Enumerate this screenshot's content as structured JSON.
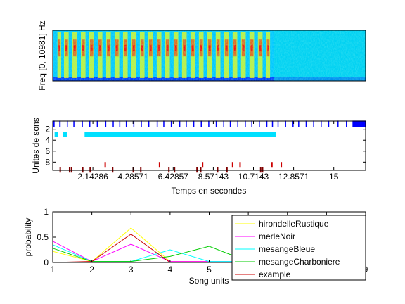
{
  "figure": {
    "background": "#ffffff"
  },
  "chart_data": [
    {
      "type": "heatmap",
      "ylabel": "Freq [0, 10981] Hz",
      "xlabel": "",
      "xlim": [
        0,
        16.7
      ],
      "energy_band_center_fraction": 0.35,
      "active_segments": [
        [
          0.25,
          0.45
        ],
        [
          0.6,
          0.85
        ],
        [
          1.05,
          1.3
        ],
        [
          1.5,
          1.75
        ],
        [
          1.95,
          2.2
        ],
        [
          2.4,
          2.65
        ],
        [
          2.85,
          3.1
        ],
        [
          3.3,
          3.55
        ],
        [
          3.75,
          4.0
        ],
        [
          4.2,
          4.45
        ],
        [
          4.65,
          4.9
        ],
        [
          5.1,
          5.35
        ],
        [
          5.55,
          5.8
        ],
        [
          6.0,
          6.25
        ],
        [
          6.45,
          6.7
        ],
        [
          6.9,
          7.15
        ],
        [
          7.35,
          7.6
        ],
        [
          7.8,
          8.05
        ],
        [
          8.25,
          8.5
        ],
        [
          8.7,
          8.95
        ],
        [
          9.15,
          9.4
        ],
        [
          9.6,
          9.85
        ],
        [
          10.05,
          10.3
        ],
        [
          10.5,
          10.75
        ],
        [
          10.95,
          11.2
        ],
        [
          11.4,
          11.6
        ]
      ],
      "sound_end_s": 11.8,
      "colormap": [
        "#00007f",
        "#0000ff",
        "#00ffff",
        "#ffff00",
        "#ff0000",
        "#7f0000"
      ]
    },
    {
      "type": "scatter",
      "xlabel": "Temps en secondes",
      "ylabel": "Unites de sons",
      "xlim": [
        0,
        16.7
      ],
      "ylim": [
        0.5,
        9.5
      ],
      "y_reversed": true,
      "xticks": [
        2.14286,
        4.28571,
        6.42857,
        8.57143,
        10.7143,
        12.8571,
        15
      ],
      "xticklabels": [
        "2.14286",
        "4.28571",
        "6.42857",
        "8.57143",
        "10.7143",
        "12.8571",
        "15"
      ],
      "yticks": [
        2,
        4,
        6,
        8
      ],
      "yticklabels": [
        "2",
        "4",
        "6",
        "8"
      ],
      "series": [
        {
          "unit": 1,
          "color": "#0000ff",
          "segments": [
            [
              0.0,
              0.1
            ],
            [
              0.35,
              0.42
            ],
            [
              0.75,
              0.8
            ],
            [
              1.1,
              1.15
            ],
            [
              1.55,
              1.6
            ],
            [
              1.95,
              2.0
            ],
            [
              2.35,
              2.4
            ],
            [
              2.8,
              2.85
            ],
            [
              3.2,
              3.25
            ],
            [
              3.55,
              3.6
            ],
            [
              3.9,
              3.95
            ],
            [
              4.3,
              4.35
            ],
            [
              4.7,
              4.75
            ],
            [
              5.1,
              5.15
            ],
            [
              5.55,
              5.6
            ],
            [
              5.9,
              5.95
            ],
            [
              6.3,
              6.35
            ],
            [
              6.75,
              6.8
            ],
            [
              7.1,
              7.15
            ],
            [
              7.5,
              7.55
            ],
            [
              7.9,
              7.95
            ],
            [
              8.3,
              8.35
            ],
            [
              8.7,
              8.75
            ],
            [
              9.1,
              9.15
            ],
            [
              9.45,
              9.5
            ],
            [
              9.85,
              9.9
            ],
            [
              10.25,
              10.3
            ],
            [
              10.6,
              10.65
            ],
            [
              11.0,
              11.05
            ],
            [
              11.4,
              11.45
            ],
            [
              11.7,
              11.75
            ],
            [
              12.0,
              12.05
            ],
            [
              12.4,
              12.45
            ],
            [
              12.8,
              12.85
            ],
            [
              13.1,
              13.15
            ],
            [
              13.5,
              13.55
            ],
            [
              13.9,
              13.95
            ],
            [
              14.3,
              14.35
            ],
            [
              14.7,
              14.75
            ],
            [
              15.2,
              15.25
            ],
            [
              15.65,
              15.7
            ],
            [
              16.0,
              16.7
            ]
          ]
        },
        {
          "unit": 3,
          "color": "#00e0ff",
          "segments": [
            [
              0.1,
              0.3
            ],
            [
              0.55,
              0.75
            ],
            [
              1.7,
              11.9
            ]
          ]
        },
        {
          "unit": 8.5,
          "color": "#cc0000",
          "points": [
            2.8,
            5.7,
            8.0,
            9.6,
            10.0,
            11.7,
            12.2
          ]
        },
        {
          "unit": 9.4,
          "color": "#7f0000",
          "points": [
            0.4,
            0.9,
            1.0,
            1.6,
            2.0,
            3.2,
            4.3,
            4.7,
            6.2,
            6.5,
            7.7,
            7.9,
            8.8,
            9.3,
            11.1,
            11.2
          ]
        }
      ]
    },
    {
      "type": "line",
      "xlabel": "Song units",
      "ylabel": "probability",
      "x": [
        1,
        2,
        3,
        4,
        5,
        6,
        7,
        8,
        9
      ],
      "xlim": [
        1,
        9
      ],
      "ylim": [
        0,
        1
      ],
      "xticks": [
        1,
        2,
        3,
        4,
        5,
        6,
        7,
        8,
        9
      ],
      "xticklabels": [
        "1",
        "2",
        "3",
        "4",
        "5",
        "6",
        "7",
        "8",
        "9"
      ],
      "yticks": [
        0,
        0.5,
        1
      ],
      "yticklabels": [
        "0",
        "0.5",
        "1"
      ],
      "legend_position": "top-right",
      "series": [
        {
          "name": "hirondelleRustique",
          "color": "#ffff00",
          "values": [
            0.22,
            0.02,
            0.68,
            0.02,
            0.02,
            0.02,
            0.02,
            0.02,
            0.02
          ]
        },
        {
          "name": "merleNoir",
          "color": "#ff00ff",
          "values": [
            0.42,
            0.02,
            0.36,
            0.02,
            0.02,
            0.02,
            0.02,
            0.02,
            0.02
          ]
        },
        {
          "name": "mesangeBleue",
          "color": "#00ffff",
          "values": [
            0.35,
            0.02,
            0.02,
            0.25,
            0.02,
            0.02,
            0.02,
            0.02,
            0.04
          ]
        },
        {
          "name": "mesangeCharboniere",
          "color": "#00cc00",
          "values": [
            0.28,
            0.02,
            0.02,
            0.12,
            0.32,
            0.02,
            0.02,
            0.02,
            0.15
          ]
        },
        {
          "name": "example",
          "color": "#cc0000",
          "values": [
            0.0,
            0.02,
            0.56,
            0.0,
            0.0,
            0.0,
            0.0,
            0.0,
            0.0
          ]
        }
      ]
    }
  ]
}
